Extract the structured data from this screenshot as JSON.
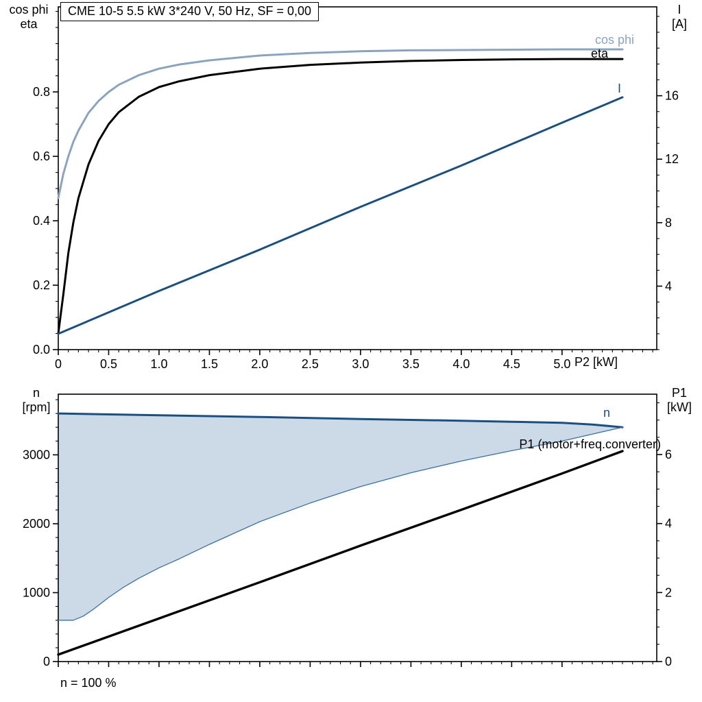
{
  "chart_data": [
    {
      "type": "line",
      "title": "CME 10-5   5.5 kW   3*240 V, 50 Hz, SF = 0,00",
      "xlabel": "P2 [kW]",
      "ylabel_left_lines": [
        "cos phi",
        "eta"
      ],
      "ylabel_right_lines": [
        "I",
        "[A]"
      ],
      "xlim": [
        0,
        5.94
      ],
      "ylim_left": [
        0,
        1.064
      ],
      "ylim_right": [
        0,
        21.6
      ],
      "grid": false,
      "legend": "inline-labels",
      "xticks": {
        "values": [
          0,
          0.5,
          1,
          1.5,
          2,
          2.5,
          3,
          3.5,
          4,
          4.5,
          5
        ],
        "labels": [
          "0",
          "0.5",
          "1.0",
          "1.5",
          "2.0",
          "2.5",
          "3.0",
          "3.5",
          "4.0",
          "4.5",
          "5.0"
        ],
        "show_labels": true
      },
      "yticks_left": {
        "values": [
          0,
          0.2,
          0.4,
          0.6,
          0.8
        ],
        "labels": [
          "0.0",
          "0.2",
          "0.4",
          "0.6",
          "0.8"
        ]
      },
      "yticks_right": {
        "values": [
          4,
          8,
          12,
          16
        ],
        "labels": [
          "4",
          "8",
          "12",
          "16"
        ]
      },
      "minor_ticks": {
        "x": 0.1,
        "left": 0.05,
        "right": 1
      },
      "series": [
        {
          "name": "cos phi",
          "axis": "left",
          "color": "#8aa4bf",
          "width": 3,
          "x": [
            0,
            0.05,
            0.1,
            0.15,
            0.2,
            0.3,
            0.4,
            0.5,
            0.6,
            0.8,
            1,
            1.2,
            1.5,
            2,
            2.5,
            3,
            3.5,
            4,
            4.5,
            5,
            5.6
          ],
          "y": [
            0.47,
            0.545,
            0.6,
            0.645,
            0.68,
            0.735,
            0.772,
            0.8,
            0.822,
            0.852,
            0.872,
            0.885,
            0.898,
            0.913,
            0.921,
            0.926,
            0.929,
            0.93,
            0.931,
            0.932,
            0.932
          ]
        },
        {
          "name": "eta",
          "axis": "left",
          "color": "#000000",
          "width": 3,
          "x": [
            0,
            0.05,
            0.1,
            0.15,
            0.2,
            0.3,
            0.4,
            0.5,
            0.6,
            0.8,
            1,
            1.2,
            1.5,
            2,
            2.5,
            3,
            3.5,
            4,
            4.5,
            5,
            5.6
          ],
          "y": [
            0.05,
            0.17,
            0.3,
            0.395,
            0.47,
            0.575,
            0.648,
            0.7,
            0.737,
            0.785,
            0.815,
            0.833,
            0.852,
            0.872,
            0.884,
            0.891,
            0.896,
            0.899,
            0.901,
            0.902,
            0.902
          ]
        },
        {
          "name": "I",
          "axis": "right",
          "color": "#1b4f80",
          "width": 3,
          "x": [
            0,
            1,
            2,
            3,
            4,
            5,
            5.6
          ],
          "y": [
            1.0,
            3.7,
            6.3,
            9.0,
            11.6,
            14.3,
            15.9
          ]
        }
      ]
    },
    {
      "type": "line",
      "title": "",
      "xlabel": "",
      "note": "n = 100 %",
      "ylabel_left_lines": [
        "n",
        "[rpm]"
      ],
      "ylabel_right_lines": [
        "P1",
        "[kW]"
      ],
      "xlim": [
        0,
        5.94
      ],
      "ylim_left": [
        0,
        3880
      ],
      "ylim_right": [
        0,
        7.75
      ],
      "grid": false,
      "legend": "inline-labels",
      "fill_color": "#ccd9e6",
      "xticks": {
        "values": [
          0,
          0.5,
          1,
          1.5,
          2,
          2.5,
          3,
          3.5,
          4,
          4.5,
          5
        ],
        "labels": [
          "",
          "",
          "",
          "",
          "",
          "",
          "",
          "",
          "",
          "",
          ""
        ],
        "show_labels": false
      },
      "yticks_left": {
        "values": [
          0,
          1000,
          2000,
          3000
        ],
        "labels": [
          "0",
          "1000",
          "2000",
          "3000"
        ]
      },
      "yticks_right": {
        "values": [
          0,
          2,
          4,
          6
        ],
        "labels": [
          "0",
          "2",
          "4",
          "6"
        ]
      },
      "minor_ticks": {
        "x": 0.1,
        "left": 200,
        "right": 0.5
      },
      "series": [
        {
          "name": "n",
          "axis": "left",
          "color": "#1b4f80",
          "width": 3,
          "x": [
            0,
            1,
            2,
            3,
            4,
            4.5,
            5,
            5.3,
            5.6
          ],
          "y": [
            3600,
            3575,
            3550,
            3520,
            3495,
            3480,
            3465,
            3440,
            3400
          ]
        },
        {
          "name": "speed range lower boundary",
          "axis": "left",
          "color": "#3a6ea5",
          "width": 1.3,
          "fill_between": "n",
          "x": [
            0,
            0.15,
            0.25,
            0.35,
            0.5,
            0.65,
            0.8,
            1,
            1.2,
            1.5,
            2,
            2.5,
            3,
            3.5,
            4,
            4.5,
            5,
            5.3,
            5.6
          ],
          "y": [
            600,
            600,
            660,
            760,
            930,
            1080,
            1210,
            1360,
            1490,
            1700,
            2030,
            2300,
            2540,
            2740,
            2910,
            3060,
            3200,
            3300,
            3400
          ]
        },
        {
          "name": "P1 (motor+freq.converter)",
          "axis": "right",
          "color": "#000000",
          "width": 3.4,
          "x": [
            0,
            1,
            2,
            3,
            4,
            5,
            5.6
          ],
          "y": [
            0.2,
            1.25,
            2.3,
            3.36,
            4.4,
            5.45,
            6.1
          ]
        }
      ]
    }
  ]
}
